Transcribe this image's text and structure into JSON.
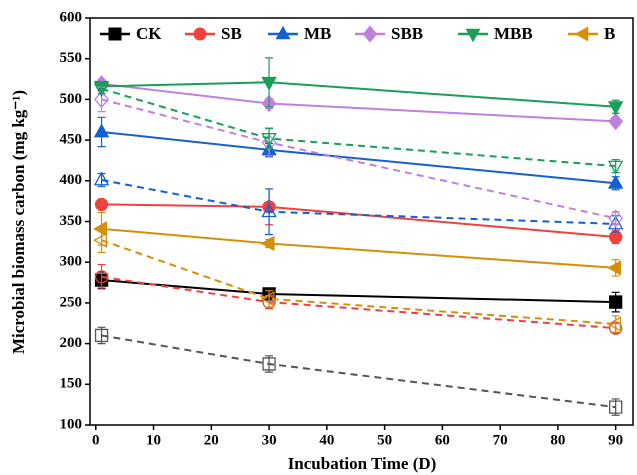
{
  "chart_data": {
    "type": "line",
    "x_label": "Incubation Time (D)",
    "y_label": "Microbial biomass carbon (mg kg⁻¹)",
    "x": [
      1,
      30,
      90
    ],
    "xlim": [
      -1,
      93
    ],
    "xticks": [
      0,
      10,
      20,
      30,
      40,
      50,
      60,
      70,
      80,
      90
    ],
    "ylim": [
      100,
      600
    ],
    "yticks": [
      100,
      150,
      200,
      250,
      300,
      350,
      400,
      450,
      500,
      550,
      600
    ],
    "legend": "top",
    "series": [
      {
        "name": "CK",
        "color": "#000000",
        "marker": "square",
        "filled": true,
        "dashed": false,
        "values": [
          278,
          261,
          251
        ],
        "errors": [
          10,
          5,
          12
        ]
      },
      {
        "name": "SB",
        "color": "#f04040",
        "marker": "circle",
        "filled": true,
        "dashed": false,
        "values": [
          371,
          368,
          331
        ],
        "errors": [
          5,
          22,
          8
        ]
      },
      {
        "name": "MB",
        "color": "#1560d0",
        "marker": "triangle-up",
        "filled": true,
        "dashed": false,
        "values": [
          460,
          438,
          397
        ],
        "errors": [
          18,
          8,
          8
        ]
      },
      {
        "name": "SBB",
        "color": "#c080e0",
        "marker": "diamond",
        "filled": true,
        "dashed": false,
        "values": [
          519,
          495,
          473
        ],
        "errors": [
          5,
          6,
          5
        ]
      },
      {
        "name": "MBB",
        "color": "#1a9e5a",
        "marker": "triangle-down",
        "filled": true,
        "dashed": false,
        "values": [
          516,
          521,
          491
        ],
        "errors": [
          5,
          30,
          8
        ]
      },
      {
        "name": "B",
        "color": "#d4900a",
        "marker": "triangle-left",
        "filled": true,
        "dashed": false,
        "values": [
          341,
          323,
          293
        ],
        "errors": [
          20,
          5,
          10
        ]
      },
      {
        "color": "#555555",
        "marker": "square",
        "filled": false,
        "dashed": true,
        "values": [
          210,
          175,
          122
        ],
        "errors": [
          10,
          10,
          10
        ]
      },
      {
        "color": "#f04040",
        "marker": "circle",
        "filled": false,
        "dashed": true,
        "values": [
          282,
          251,
          219
        ],
        "errors": [
          15,
          8,
          6
        ]
      },
      {
        "color": "#1560d0",
        "marker": "triangle-up",
        "filled": false,
        "dashed": true,
        "values": [
          401,
          362,
          347
        ],
        "errors": [
          8,
          28,
          10
        ]
      },
      {
        "color": "#c080e0",
        "marker": "diamond",
        "filled": false,
        "dashed": true,
        "values": [
          500,
          447,
          354
        ],
        "errors": [
          15,
          18,
          8
        ]
      },
      {
        "color": "#1a9e5a",
        "marker": "triangle-down",
        "filled": false,
        "dashed": true,
        "values": [
          513,
          452,
          418
        ],
        "errors": [
          6,
          12,
          8
        ]
      },
      {
        "color": "#d4900a",
        "marker": "triangle-left",
        "filled": false,
        "dashed": true,
        "values": [
          327,
          255,
          224
        ],
        "errors": [
          15,
          10,
          10
        ]
      }
    ]
  }
}
